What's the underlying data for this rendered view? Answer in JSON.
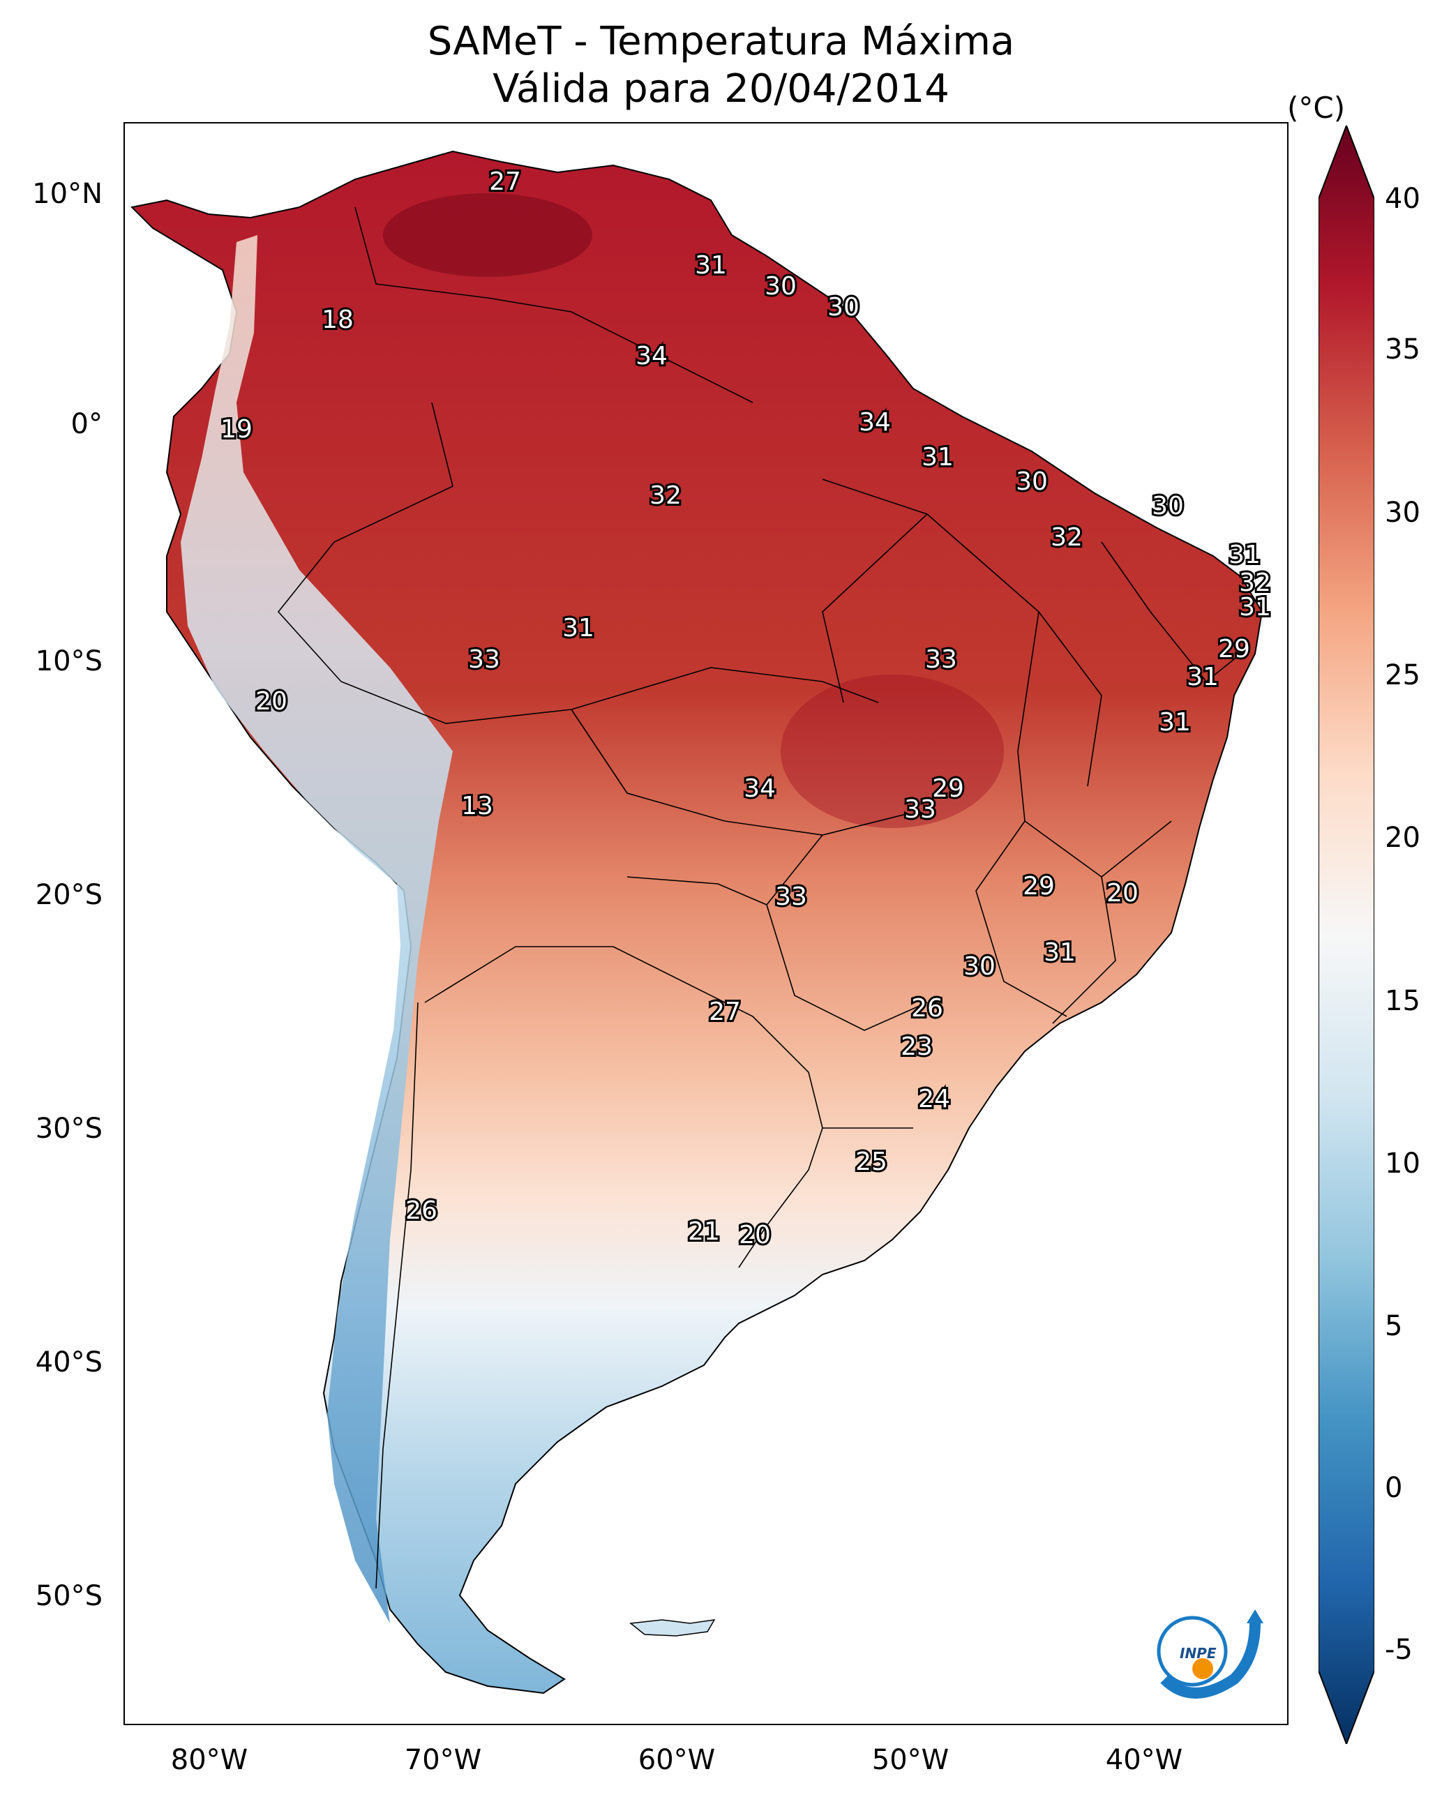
{
  "title": {
    "line1": "SAMeT - Temperatura Máxima",
    "line2": "Válida para 20/04/2014"
  },
  "colorbar": {
    "unit": "(°C)",
    "ticks": [
      "40",
      "35",
      "30",
      "25",
      "20",
      "15",
      "10",
      "5",
      "0",
      "-5"
    ],
    "colors": [
      "#67001f",
      "#b2182b",
      "#d6604d",
      "#f4a582",
      "#fddbc7",
      "#f7f7f7",
      "#d1e5f0",
      "#92c5de",
      "#4393c3",
      "#2166ac",
      "#053061"
    ]
  },
  "axes": {
    "lat_labels": [
      "10°N",
      "0°",
      "10°S",
      "20°S",
      "30°S",
      "40°S",
      "50°S"
    ],
    "lon_labels": [
      "80°W",
      "70°W",
      "60°W",
      "50°W",
      "40°W"
    ]
  },
  "station_values": [
    "27",
    "31",
    "30",
    "30",
    "18",
    "34",
    "34",
    "19",
    "31",
    "30",
    "30",
    "32",
    "32",
    "31",
    "32",
    "31",
    "31",
    "33",
    "29",
    "33",
    "20",
    "31",
    "31",
    "13",
    "34",
    "29",
    "33",
    "29",
    "20",
    "33",
    "31",
    "30",
    "26",
    "27",
    "23",
    "24",
    "25",
    "26",
    "21",
    "20"
  ],
  "logo": {
    "text": "INPE",
    "colors": {
      "blue": "#1a7bc4",
      "orange": "#f39200"
    }
  }
}
